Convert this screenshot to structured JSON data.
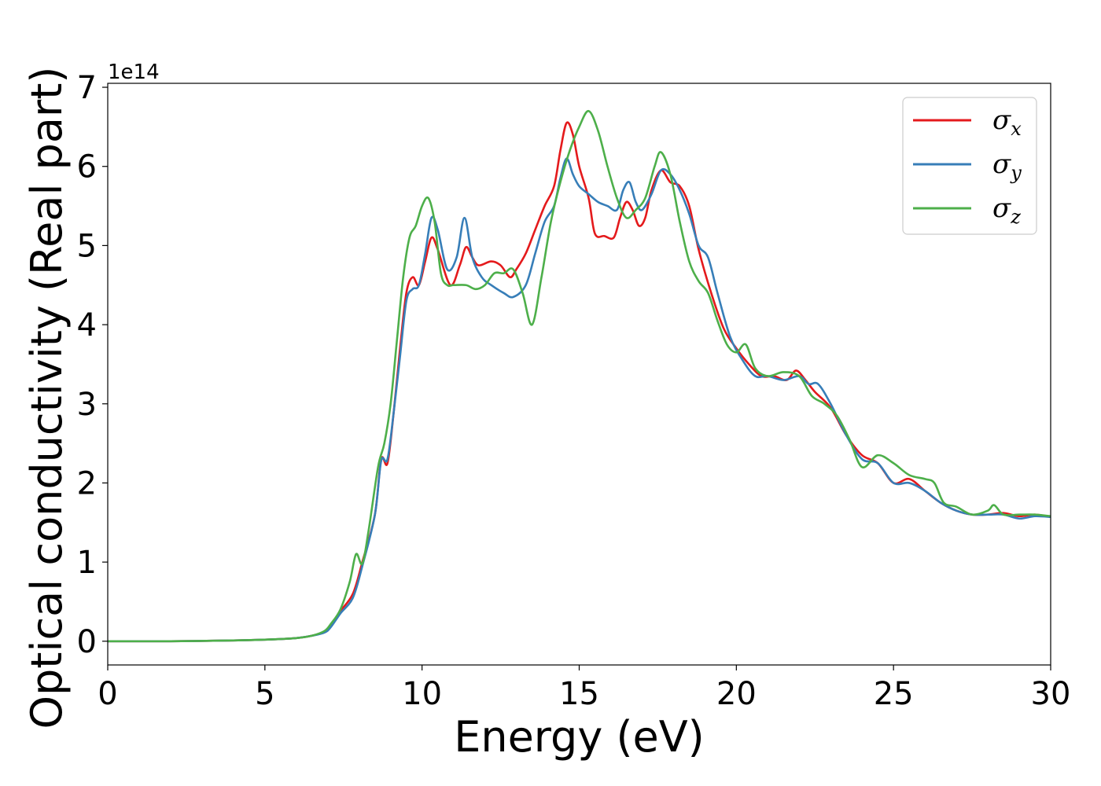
{
  "chart_data": {
    "type": "line",
    "xlabel": "Energy (eV)",
    "ylabel": "Optical conductivity (Real part)",
    "offset_text": "1e14",
    "xlim": [
      0,
      30
    ],
    "ylim": [
      -0.3,
      7.05
    ],
    "xticks": [
      0,
      5,
      10,
      15,
      20,
      25,
      30
    ],
    "xtick_labels": [
      "0",
      "5",
      "10",
      "15",
      "20",
      "25",
      "30"
    ],
    "yticks": [
      0,
      1,
      2,
      3,
      4,
      5,
      6,
      7
    ],
    "ytick_labels": [
      "0",
      "1",
      "2",
      "3",
      "4",
      "5",
      "6",
      "7"
    ],
    "y_scale_factor": 100000000000000.0,
    "grid": false,
    "legend_position": "top-right",
    "series": [
      {
        "name": "σ",
        "subscript": "x",
        "color": "#e41a1c",
        "points": [
          [
            0,
            0
          ],
          [
            2,
            0
          ],
          [
            4,
            0.01
          ],
          [
            5,
            0.02
          ],
          [
            6,
            0.04
          ],
          [
            6.5,
            0.07
          ],
          [
            6.9,
            0.12
          ],
          [
            7.1,
            0.2
          ],
          [
            7.4,
            0.38
          ],
          [
            7.8,
            0.6
          ],
          [
            8.1,
            1.0
          ],
          [
            8.5,
            1.6
          ],
          [
            8.7,
            2.3
          ],
          [
            8.9,
            2.25
          ],
          [
            9.1,
            2.9
          ],
          [
            9.3,
            3.7
          ],
          [
            9.5,
            4.4
          ],
          [
            9.7,
            4.6
          ],
          [
            9.9,
            4.5
          ],
          [
            10.1,
            4.8
          ],
          [
            10.3,
            5.1
          ],
          [
            10.5,
            4.95
          ],
          [
            10.9,
            4.5
          ],
          [
            11.2,
            4.75
          ],
          [
            11.4,
            4.98
          ],
          [
            11.6,
            4.85
          ],
          [
            11.8,
            4.75
          ],
          [
            12.2,
            4.8
          ],
          [
            12.5,
            4.75
          ],
          [
            12.8,
            4.6
          ],
          [
            13.0,
            4.7
          ],
          [
            13.3,
            4.9
          ],
          [
            13.6,
            5.2
          ],
          [
            13.9,
            5.5
          ],
          [
            14.2,
            5.75
          ],
          [
            14.4,
            6.2
          ],
          [
            14.6,
            6.55
          ],
          [
            14.8,
            6.4
          ],
          [
            15.0,
            6.0
          ],
          [
            15.3,
            5.6
          ],
          [
            15.5,
            5.15
          ],
          [
            15.8,
            5.12
          ],
          [
            16.1,
            5.1
          ],
          [
            16.3,
            5.35
          ],
          [
            16.5,
            5.55
          ],
          [
            16.7,
            5.45
          ],
          [
            16.9,
            5.25
          ],
          [
            17.1,
            5.35
          ],
          [
            17.3,
            5.7
          ],
          [
            17.6,
            5.95
          ],
          [
            17.9,
            5.8
          ],
          [
            18.2,
            5.75
          ],
          [
            18.5,
            5.5
          ],
          [
            18.8,
            4.95
          ],
          [
            19.2,
            4.4
          ],
          [
            19.6,
            3.95
          ],
          [
            20.0,
            3.7
          ],
          [
            20.4,
            3.5
          ],
          [
            20.8,
            3.35
          ],
          [
            21.2,
            3.35
          ],
          [
            21.6,
            3.3
          ],
          [
            21.9,
            3.42
          ],
          [
            22.2,
            3.3
          ],
          [
            22.5,
            3.15
          ],
          [
            23.0,
            2.95
          ],
          [
            23.5,
            2.6
          ],
          [
            24.0,
            2.35
          ],
          [
            24.5,
            2.25
          ],
          [
            25.0,
            2.0
          ],
          [
            25.5,
            2.05
          ],
          [
            26.0,
            1.9
          ],
          [
            26.5,
            1.75
          ],
          [
            27.0,
            1.65
          ],
          [
            27.5,
            1.6
          ],
          [
            28.0,
            1.6
          ],
          [
            28.5,
            1.62
          ],
          [
            29.0,
            1.58
          ],
          [
            29.5,
            1.6
          ],
          [
            30,
            1.57
          ]
        ]
      },
      {
        "name": "σ",
        "subscript": "y",
        "color": "#377eb8",
        "points": [
          [
            0,
            0
          ],
          [
            2,
            0
          ],
          [
            4,
            0.01
          ],
          [
            5,
            0.02
          ],
          [
            6,
            0.04
          ],
          [
            6.5,
            0.07
          ],
          [
            6.9,
            0.11
          ],
          [
            7.1,
            0.18
          ],
          [
            7.4,
            0.35
          ],
          [
            7.8,
            0.55
          ],
          [
            8.1,
            0.95
          ],
          [
            8.5,
            1.6
          ],
          [
            8.7,
            2.28
          ],
          [
            8.9,
            2.3
          ],
          [
            9.1,
            2.9
          ],
          [
            9.3,
            3.6
          ],
          [
            9.5,
            4.3
          ],
          [
            9.7,
            4.45
          ],
          [
            9.9,
            4.5
          ],
          [
            10.1,
            4.9
          ],
          [
            10.3,
            5.35
          ],
          [
            10.5,
            5.2
          ],
          [
            10.8,
            4.7
          ],
          [
            11.1,
            4.85
          ],
          [
            11.35,
            5.35
          ],
          [
            11.6,
            4.85
          ],
          [
            11.9,
            4.6
          ],
          [
            12.2,
            4.5
          ],
          [
            12.6,
            4.4
          ],
          [
            12.9,
            4.35
          ],
          [
            13.3,
            4.5
          ],
          [
            13.6,
            4.9
          ],
          [
            13.9,
            5.3
          ],
          [
            14.2,
            5.5
          ],
          [
            14.4,
            5.85
          ],
          [
            14.6,
            6.1
          ],
          [
            14.8,
            5.9
          ],
          [
            15.0,
            5.75
          ],
          [
            15.3,
            5.65
          ],
          [
            15.6,
            5.55
          ],
          [
            15.9,
            5.5
          ],
          [
            16.2,
            5.45
          ],
          [
            16.4,
            5.7
          ],
          [
            16.6,
            5.8
          ],
          [
            16.8,
            5.55
          ],
          [
            17.0,
            5.45
          ],
          [
            17.3,
            5.65
          ],
          [
            17.6,
            5.95
          ],
          [
            17.9,
            5.9
          ],
          [
            18.2,
            5.7
          ],
          [
            18.5,
            5.4
          ],
          [
            18.8,
            5.0
          ],
          [
            19.1,
            4.85
          ],
          [
            19.4,
            4.4
          ],
          [
            19.8,
            3.85
          ],
          [
            20.2,
            3.55
          ],
          [
            20.6,
            3.35
          ],
          [
            21.0,
            3.35
          ],
          [
            21.5,
            3.3
          ],
          [
            22.0,
            3.35
          ],
          [
            22.3,
            3.25
          ],
          [
            22.6,
            3.25
          ],
          [
            23.0,
            3.0
          ],
          [
            23.5,
            2.6
          ],
          [
            24.0,
            2.3
          ],
          [
            24.5,
            2.25
          ],
          [
            25.0,
            2.0
          ],
          [
            25.5,
            2.0
          ],
          [
            26.0,
            1.9
          ],
          [
            26.5,
            1.75
          ],
          [
            27.0,
            1.65
          ],
          [
            27.5,
            1.6
          ],
          [
            28.0,
            1.6
          ],
          [
            28.5,
            1.6
          ],
          [
            29.0,
            1.55
          ],
          [
            29.5,
            1.58
          ],
          [
            30,
            1.57
          ]
        ]
      },
      {
        "name": "σ",
        "subscript": "z",
        "color": "#4daf4a",
        "points": [
          [
            0,
            0
          ],
          [
            2,
            0
          ],
          [
            4,
            0.01
          ],
          [
            5,
            0.02
          ],
          [
            6,
            0.04
          ],
          [
            6.5,
            0.07
          ],
          [
            6.9,
            0.13
          ],
          [
            7.1,
            0.22
          ],
          [
            7.4,
            0.4
          ],
          [
            7.7,
            0.75
          ],
          [
            7.9,
            1.1
          ],
          [
            8.1,
            0.98
          ],
          [
            8.3,
            1.4
          ],
          [
            8.6,
            2.2
          ],
          [
            8.8,
            2.5
          ],
          [
            9.0,
            3.0
          ],
          [
            9.2,
            3.8
          ],
          [
            9.4,
            4.6
          ],
          [
            9.6,
            5.1
          ],
          [
            9.8,
            5.25
          ],
          [
            10.0,
            5.5
          ],
          [
            10.2,
            5.6
          ],
          [
            10.4,
            5.3
          ],
          [
            10.6,
            4.65
          ],
          [
            10.8,
            4.5
          ],
          [
            11.0,
            4.5
          ],
          [
            11.4,
            4.5
          ],
          [
            11.7,
            4.45
          ],
          [
            12.0,
            4.5
          ],
          [
            12.3,
            4.65
          ],
          [
            12.6,
            4.65
          ],
          [
            12.9,
            4.7
          ],
          [
            13.2,
            4.4
          ],
          [
            13.5,
            4.0
          ],
          [
            13.8,
            4.6
          ],
          [
            14.1,
            5.3
          ],
          [
            14.4,
            5.8
          ],
          [
            14.7,
            6.2
          ],
          [
            15.0,
            6.5
          ],
          [
            15.3,
            6.7
          ],
          [
            15.6,
            6.45
          ],
          [
            15.9,
            6.0
          ],
          [
            16.2,
            5.6
          ],
          [
            16.5,
            5.35
          ],
          [
            16.8,
            5.45
          ],
          [
            17.1,
            5.6
          ],
          [
            17.4,
            6.0
          ],
          [
            17.6,
            6.18
          ],
          [
            17.9,
            5.9
          ],
          [
            18.2,
            5.3
          ],
          [
            18.5,
            4.8
          ],
          [
            18.8,
            4.55
          ],
          [
            19.1,
            4.4
          ],
          [
            19.4,
            4.05
          ],
          [
            19.7,
            3.75
          ],
          [
            20.0,
            3.65
          ],
          [
            20.3,
            3.75
          ],
          [
            20.6,
            3.45
          ],
          [
            21.0,
            3.35
          ],
          [
            21.5,
            3.4
          ],
          [
            22.0,
            3.35
          ],
          [
            22.4,
            3.1
          ],
          [
            22.8,
            3.0
          ],
          [
            23.2,
            2.85
          ],
          [
            23.6,
            2.55
          ],
          [
            24.0,
            2.2
          ],
          [
            24.5,
            2.35
          ],
          [
            25.0,
            2.25
          ],
          [
            25.5,
            2.1
          ],
          [
            26.0,
            2.05
          ],
          [
            26.3,
            2.0
          ],
          [
            26.6,
            1.75
          ],
          [
            27.0,
            1.7
          ],
          [
            27.5,
            1.6
          ],
          [
            28.0,
            1.65
          ],
          [
            28.2,
            1.72
          ],
          [
            28.5,
            1.6
          ],
          [
            29.0,
            1.6
          ],
          [
            29.5,
            1.6
          ],
          [
            30,
            1.58
          ]
        ]
      }
    ]
  }
}
